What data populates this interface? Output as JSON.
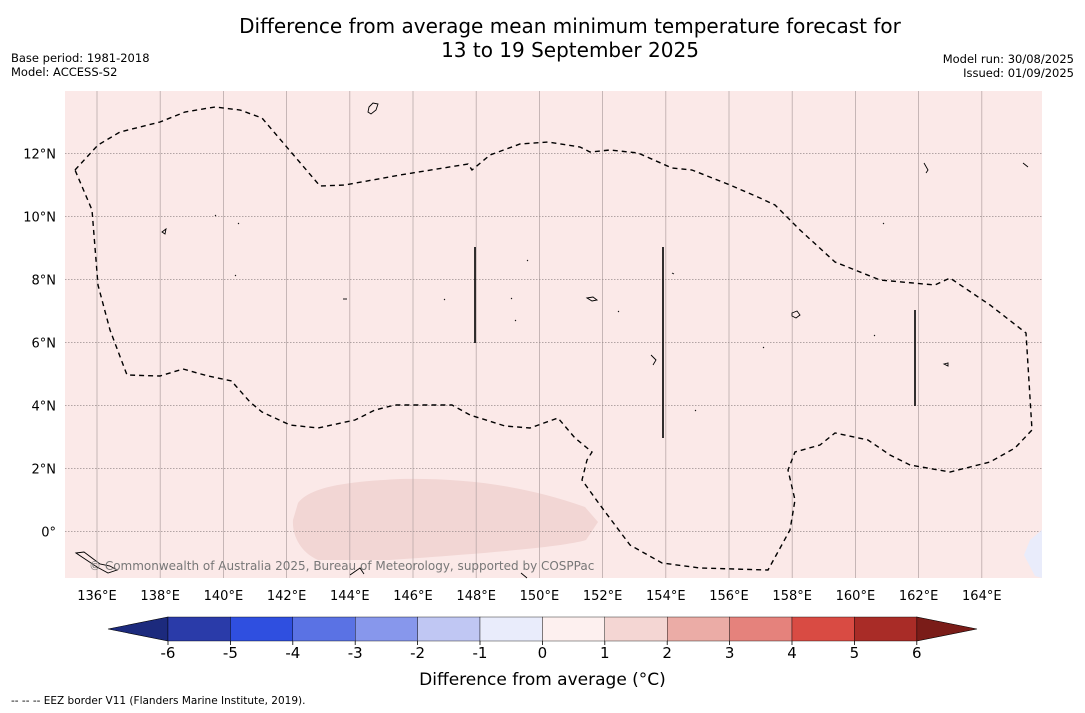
{
  "title": {
    "line1": "Difference from average mean minimum temperature forecast for",
    "line2": "13 to 19 September 2025"
  },
  "meta_left": {
    "base_period": "Base period: 1981-2018",
    "model": "Model: ACCESS-S2"
  },
  "meta_right": {
    "model_run": "Model run: 30/08/2025",
    "issued": "Issued: 01/09/2025"
  },
  "map": {
    "lon_labels": [
      "136°E",
      "138°E",
      "140°E",
      "142°E",
      "144°E",
      "146°E",
      "148°E",
      "150°E",
      "152°E",
      "154°E",
      "156°E",
      "158°E",
      "160°E",
      "162°E",
      "164°E"
    ],
    "lat_labels": [
      "12°N",
      "10°N",
      "8°N",
      "6°N",
      "4°N",
      "2°N",
      "0°"
    ],
    "copyright": "© Commonwealth of Australia 2025, Bureau of Meteorology, supported by COSPPac",
    "background_color": "#fbe9e8",
    "anomaly_patch_color": "#f2d6d4"
  },
  "colorbar": {
    "ticks": [
      "-6",
      "-5",
      "-4",
      "-3",
      "-2",
      "-1",
      "0",
      "1",
      "2",
      "3",
      "4",
      "5",
      "6"
    ],
    "colors": [
      "#2a3ba9",
      "#2f4fe0",
      "#5a72e4",
      "#8797ec",
      "#c0c7f3",
      "#e9ecfb",
      "#fdf0ef",
      "#f4d6d3",
      "#ebaca6",
      "#e5827c",
      "#d94b43",
      "#a92c27"
    ],
    "low_extend_color": "#1c2a7d",
    "high_extend_color": "#7a1c18",
    "label": "Difference from average (°C)"
  },
  "footer": "--  --  -- EEZ border V11 (Flanders Marine Institute, 2019)."
}
